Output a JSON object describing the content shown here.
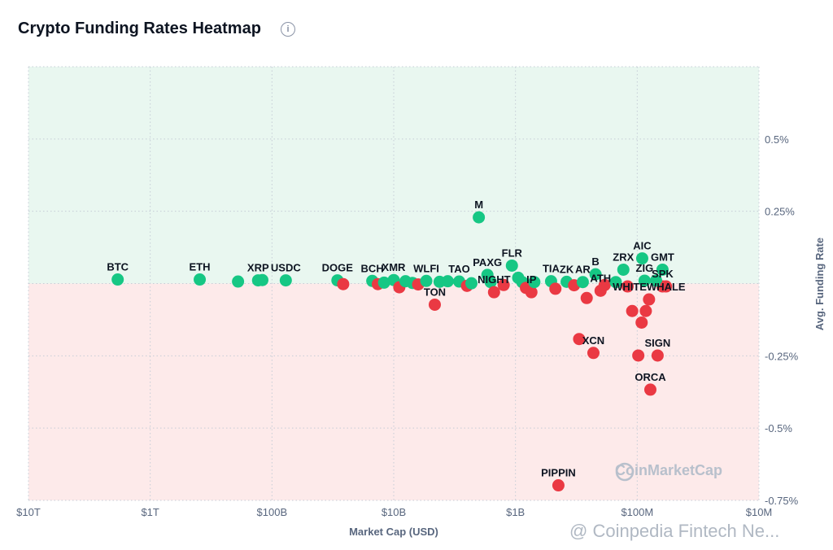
{
  "title": "Crypto Funding Rates Heatmap",
  "info_icon": "info-circle-icon",
  "watermarks": {
    "logo": "CoinMarketCap",
    "overlay": "@ Coinpedia Fintech Ne..."
  },
  "colors": {
    "positive": "#16c784",
    "negative": "#ea3943",
    "positive_bg": "#e9f7f0",
    "negative_bg": "#fdeaea"
  },
  "chart_data": {
    "type": "scatter",
    "title": "Crypto Funding Rates Heatmap",
    "xlabel": "Market Cap (USD)",
    "ylabel": "Avg. Funding Rate",
    "x_scale": "log, reversed",
    "xlim": [
      10000000000000,
      10000000
    ],
    "ylim": [
      -0.75,
      0.75
    ],
    "x_ticks": [
      {
        "value": 10000000000000,
        "label": "$10T"
      },
      {
        "value": 1000000000000,
        "label": "$1T"
      },
      {
        "value": 100000000000,
        "label": "$100B"
      },
      {
        "value": 10000000000,
        "label": "$10B"
      },
      {
        "value": 1000000000,
        "label": "$1B"
      },
      {
        "value": 100000000,
        "label": "$100M"
      },
      {
        "value": 10000000,
        "label": "$10M"
      }
    ],
    "y_ticks": [
      {
        "value": 0.5,
        "label": "0.5%"
      },
      {
        "value": 0.25,
        "label": "0.25%"
      },
      {
        "value": -0.25,
        "label": "-0.25%"
      },
      {
        "value": -0.5,
        "label": "-0.5%"
      },
      {
        "value": -0.75,
        "label": "-0.75%"
      }
    ],
    "grid": true,
    "points": [
      {
        "label": "BTC",
        "mcap": 1850000000000,
        "rate": 0.014
      },
      {
        "label": "ETH",
        "mcap": 392000000000,
        "rate": 0.014
      },
      {
        "label": "",
        "mcap": 190000000000,
        "rate": 0.007
      },
      {
        "label": "XRP",
        "mcap": 130000000000,
        "rate": 0.011
      },
      {
        "label": "",
        "mcap": 120000000000,
        "rate": 0.012
      },
      {
        "label": "USDC",
        "mcap": 77000000000,
        "rate": 0.011
      },
      {
        "label": "DOGE",
        "mcap": 29000000000,
        "rate": 0.011
      },
      {
        "label": "",
        "mcap": 26000000000,
        "rate": -0.002
      },
      {
        "label": "BCH",
        "mcap": 15000000000,
        "rate": 0.009
      },
      {
        "label": "",
        "mcap": 13500000000,
        "rate": -0.002
      },
      {
        "label": "",
        "mcap": 12000000000,
        "rate": 0.003
      },
      {
        "label": "XMR",
        "mcap": 10000000000,
        "rate": 0.012
      },
      {
        "label": "",
        "mcap": 9000000000,
        "rate": -0.013
      },
      {
        "label": "",
        "mcap": 8000000000,
        "rate": 0.008
      },
      {
        "label": "",
        "mcap": 7000000000,
        "rate": 0.002
      },
      {
        "label": "",
        "mcap": 6300000000,
        "rate": -0.003
      },
      {
        "label": "WLFI",
        "mcap": 5400000000,
        "rate": 0.009
      },
      {
        "label": "TON",
        "mcap": 4600000000,
        "rate": -0.073
      },
      {
        "label": "",
        "mcap": 4200000000,
        "rate": 0.006
      },
      {
        "label": "",
        "mcap": 3600000000,
        "rate": 0.008
      },
      {
        "label": "TAO",
        "mcap": 2900000000,
        "rate": 0.007
      },
      {
        "label": "",
        "mcap": 2500000000,
        "rate": -0.008
      },
      {
        "label": "",
        "mcap": 2300000000,
        "rate": 0.001
      },
      {
        "label": "M",
        "mcap": 2000000000,
        "rate": 0.229
      },
      {
        "label": "PAXG",
        "mcap": 1700000000,
        "rate": 0.03
      },
      {
        "label": "",
        "mcap": 1600000000,
        "rate": 0.005
      },
      {
        "label": "NIGHT",
        "mcap": 1500000000,
        "rate": -0.03
      },
      {
        "label": "",
        "mcap": 1250000000,
        "rate": -0.005
      },
      {
        "label": "FLR",
        "mcap": 1070000000,
        "rate": 0.062
      },
      {
        "label": "",
        "mcap": 950000000,
        "rate": 0.02
      },
      {
        "label": "",
        "mcap": 880000000,
        "rate": 0.005
      },
      {
        "label": "",
        "mcap": 820000000,
        "rate": -0.015
      },
      {
        "label": "IP",
        "mcap": 740000000,
        "rate": -0.03
      },
      {
        "label": "",
        "mcap": 700000000,
        "rate": 0.005
      },
      {
        "label": "TIA",
        "mcap": 510000000,
        "rate": 0.008
      },
      {
        "label": "",
        "mcap": 470000000,
        "rate": -0.018
      },
      {
        "label": "ZK",
        "mcap": 380000000,
        "rate": 0.006
      },
      {
        "label": "",
        "mcap": 330000000,
        "rate": -0.006
      },
      {
        "label": "AR",
        "mcap": 280000000,
        "rate": 0.005
      },
      {
        "label": "",
        "mcap": 260000000,
        "rate": -0.05
      },
      {
        "label": "B",
        "mcap": 220000000,
        "rate": 0.032
      },
      {
        "label": "ATH",
        "mcap": 200000000,
        "rate": -0.025
      },
      {
        "label": "",
        "mcap": 185000000,
        "rate": -0.005
      },
      {
        "label": "ZRX",
        "mcap": 130000000,
        "rate": 0.048
      },
      {
        "label": "",
        "mcap": 150000000,
        "rate": 0.005
      },
      {
        "label": "",
        "mcap": 120000000,
        "rate": -0.01
      },
      {
        "label": "",
        "mcap": 110000000,
        "rate": -0.095
      },
      {
        "label": "",
        "mcap": 92000000,
        "rate": -0.135
      },
      {
        "label": "AIC",
        "mcap": 91000000,
        "rate": 0.087
      },
      {
        "label": "ZIG",
        "mcap": 87000000,
        "rate": 0.01
      },
      {
        "label": "WHITEWHALE",
        "mcap": 80000000,
        "rate": -0.055
      },
      {
        "label": "",
        "mcap": 85000000,
        "rate": -0.095
      },
      {
        "label": "GMT",
        "mcap": 62000000,
        "rate": 0.048
      },
      {
        "label": "SPK",
        "mcap": 62000000,
        "rate": -0.01
      },
      {
        "label": "",
        "mcap": 70000000,
        "rate": 0.01
      },
      {
        "label": "",
        "mcap": 58000000,
        "rate": -0.01
      },
      {
        "label": "XCN",
        "mcap": 229000000,
        "rate": -0.24
      },
      {
        "label": "",
        "mcap": 300000000,
        "rate": -0.192
      },
      {
        "label": "",
        "mcap": 98000000,
        "rate": -0.249
      },
      {
        "label": "SIGN",
        "mcap": 68000000,
        "rate": -0.249
      },
      {
        "label": "ORCA",
        "mcap": 78000000,
        "rate": -0.367
      },
      {
        "label": "PIPPIN",
        "mcap": 444000000,
        "rate": -0.698
      }
    ]
  }
}
